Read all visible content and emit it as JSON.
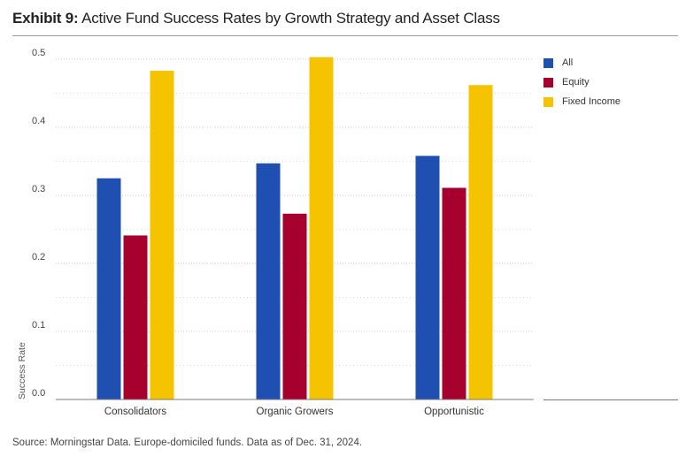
{
  "title": {
    "lead": "Exhibit 9:",
    "text": "Active Fund Success Rates by Growth Strategy and Asset Class"
  },
  "source": "Source: Morningstar Data. Europe-domiciled funds. Data as of Dec. 31, 2024.",
  "colors": {
    "All": "#1f4fb0",
    "Equity": "#a6002e",
    "Fixed Income": "#f5c300"
  },
  "chart_data": {
    "type": "bar",
    "title": "Active Fund Success Rates by Growth Strategy and Asset Class",
    "xlabel": "",
    "ylabel": "Success Rate",
    "ylim": [
      0,
      0.5
    ],
    "yticks": [
      "0.0",
      "0.1",
      "0.2",
      "0.3",
      "0.4",
      "0.5"
    ],
    "categories": [
      "Consolidators",
      "Organic Growers",
      "Opportunistic"
    ],
    "series": [
      {
        "name": "All",
        "values": [
          0.325,
          0.347,
          0.358
        ]
      },
      {
        "name": "Equity",
        "values": [
          0.241,
          0.273,
          0.311
        ]
      },
      {
        "name": "Fixed Income",
        "values": [
          0.483,
          0.503,
          0.462
        ]
      }
    ],
    "grid": true,
    "legend": "right"
  }
}
